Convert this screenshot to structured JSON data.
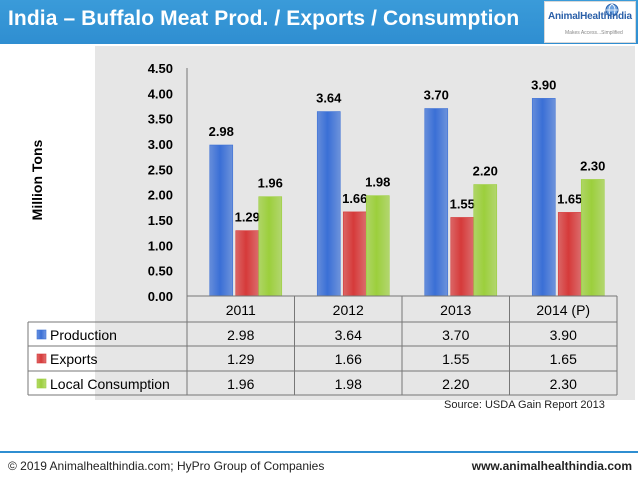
{
  "header": {
    "title": "India – Buffalo Meat Prod. / Exports / Consumption",
    "logo_name": "AnimalHealthIndia",
    "logo_tagline": "Makes Access...Simplified"
  },
  "colors": {
    "title_bar": "#2f8ed1",
    "production": "#3a6fd6",
    "exports": "#d63a3a",
    "consumption": "#9ccf3c"
  },
  "chart_data": {
    "type": "bar",
    "title": "India – Buffalo Meat Prod. / Exports / Consumption",
    "xlabel": "",
    "ylabel": "Million Tons",
    "ylim": [
      0,
      4.5
    ],
    "y_ticks": [
      "0.00",
      "0.50",
      "1.00",
      "1.50",
      "2.00",
      "2.50",
      "3.00",
      "3.50",
      "4.00",
      "4.50"
    ],
    "categories": [
      "2011",
      "2012",
      "2013",
      "2014 (P)"
    ],
    "series": [
      {
        "name": "Production",
        "values": [
          2.98,
          3.64,
          3.7,
          3.9
        ],
        "labels": [
          "2.98",
          "3.64",
          "3.70",
          "3.90"
        ]
      },
      {
        "name": "Exports",
        "values": [
          1.29,
          1.66,
          1.55,
          1.65
        ],
        "labels": [
          "1.29",
          "1.66",
          "1.55",
          "1.65"
        ]
      },
      {
        "name": "Local Consumption",
        "values": [
          1.96,
          1.98,
          2.2,
          2.3
        ],
        "labels": [
          "1.96",
          "1.98",
          "2.20",
          "2.30"
        ]
      }
    ],
    "data_table": true,
    "grid": false
  },
  "source": "Source: USDA Gain Report 2013",
  "footer": {
    "copyright": "© 2019 Animalhealthindia.com;  HyPro Group of Companies",
    "website": "www.animalhealthindia.com"
  }
}
